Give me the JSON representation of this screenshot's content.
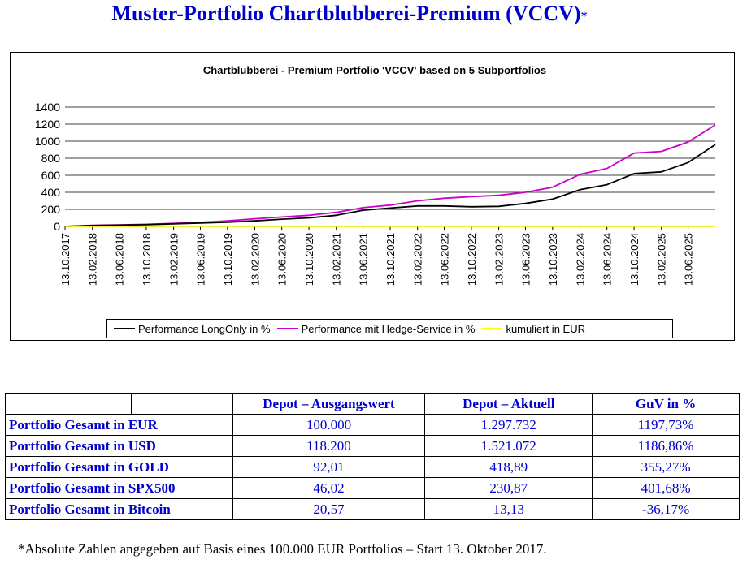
{
  "page": {
    "title": "Muster-Portfolio Chartblubberei-Premium (VCCV)",
    "title_star": "*",
    "footnote": "*Absolute Zahlen angegeben auf Basis eines 100.000 EUR Portfolios – Start 13. Oktober 2017."
  },
  "colors": {
    "longonly": "#000000",
    "hedge": "#cc00cc",
    "eur": "#ffff00",
    "title": "#0000cc"
  },
  "chart_data": {
    "type": "line",
    "title": "Chartblubberei - Premium Portfolio 'VCCV' based on 5 Subportfolios",
    "xlabel": "",
    "ylabel": "",
    "ylim": [
      0,
      1400
    ],
    "yticks": [
      "0",
      "200",
      "400",
      "600",
      "800",
      "1000",
      "1200",
      "1400"
    ],
    "xticks": [
      "13.10.2017",
      "13.02.2018",
      "13.06.2018",
      "13.10.2018",
      "13.02.2019",
      "13.06.2019",
      "13.10.2019",
      "13.02.2020",
      "13.06.2020",
      "13.10.2020",
      "13.02.2021",
      "13.06.2021",
      "13.10.2021",
      "13.02.2022",
      "13.06.2022",
      "13.10.2022",
      "13.02.2023",
      "13.06.2023",
      "13.10.2023",
      "13.02.2024",
      "13.06.2024",
      "13.10.2024",
      "13.02.2025",
      "13.06.2025"
    ],
    "grid": true,
    "legend_position": "bottom",
    "series": [
      {
        "name": "Performance LongOnly in %",
        "x": [
          "13.10.2017",
          "13.02.2018",
          "13.06.2018",
          "13.10.2018",
          "13.02.2019",
          "13.06.2019",
          "13.10.2019",
          "13.02.2020",
          "13.06.2020",
          "13.10.2020",
          "13.02.2021",
          "13.06.2021",
          "13.10.2021",
          "13.02.2022",
          "13.06.2022",
          "13.10.2022",
          "13.02.2023",
          "13.06.2023",
          "13.10.2023",
          "13.02.2024",
          "13.06.2024",
          "13.10.2024",
          "13.02.2025",
          "13.06.2025",
          "13.10.2025"
        ],
        "values": [
          0,
          10,
          15,
          20,
          30,
          40,
          50,
          65,
          85,
          100,
          130,
          190,
          215,
          240,
          240,
          230,
          235,
          270,
          320,
          430,
          490,
          620,
          640,
          750,
          960
        ]
      },
      {
        "name": "Performance mit Hedge-Service in %",
        "x": [
          "13.10.2017",
          "13.02.2018",
          "13.06.2018",
          "13.10.2018",
          "13.02.2019",
          "13.06.2019",
          "13.10.2019",
          "13.02.2020",
          "13.06.2020",
          "13.10.2020",
          "13.02.2021",
          "13.06.2021",
          "13.10.2021",
          "13.02.2022",
          "13.06.2022",
          "13.10.2022",
          "13.02.2023",
          "13.06.2023",
          "13.10.2023",
          "13.02.2024",
          "13.06.2024",
          "13.10.2024",
          "13.02.2025",
          "13.06.2025",
          "13.10.2025"
        ],
        "values": [
          0,
          12,
          18,
          25,
          35,
          48,
          65,
          90,
          110,
          130,
          165,
          220,
          250,
          300,
          330,
          350,
          365,
          400,
          460,
          610,
          680,
          860,
          880,
          990,
          1190
        ]
      },
      {
        "name": "kumuliert in EUR",
        "x": [
          "13.10.2017",
          "13.10.2025"
        ],
        "values": [
          0,
          0
        ]
      }
    ]
  },
  "table": {
    "headers": [
      "",
      "",
      "Depot – Ausgangswert",
      "Depot – Aktuell",
      "GuV in %"
    ],
    "rows": [
      {
        "label": "Portfolio Gesamt in EUR",
        "start": "100.000",
        "current": "1.297.732",
        "pnl": "1197,73%"
      },
      {
        "label": "Portfolio Gesamt in USD",
        "start": "118.200",
        "current": "1.521.072",
        "pnl": "1186,86%"
      },
      {
        "label": "Portfolio Gesamt in GOLD",
        "start": "92,01",
        "current": "418,89",
        "pnl": "355,27%"
      },
      {
        "label": "Portfolio Gesamt in SPX500",
        "start": "46,02",
        "current": "230,87",
        "pnl": "401,68%"
      },
      {
        "label": "Portfolio Gesamt in Bitcoin",
        "start": "20,57",
        "current": "13,13",
        "pnl": "-36,17%"
      }
    ]
  }
}
